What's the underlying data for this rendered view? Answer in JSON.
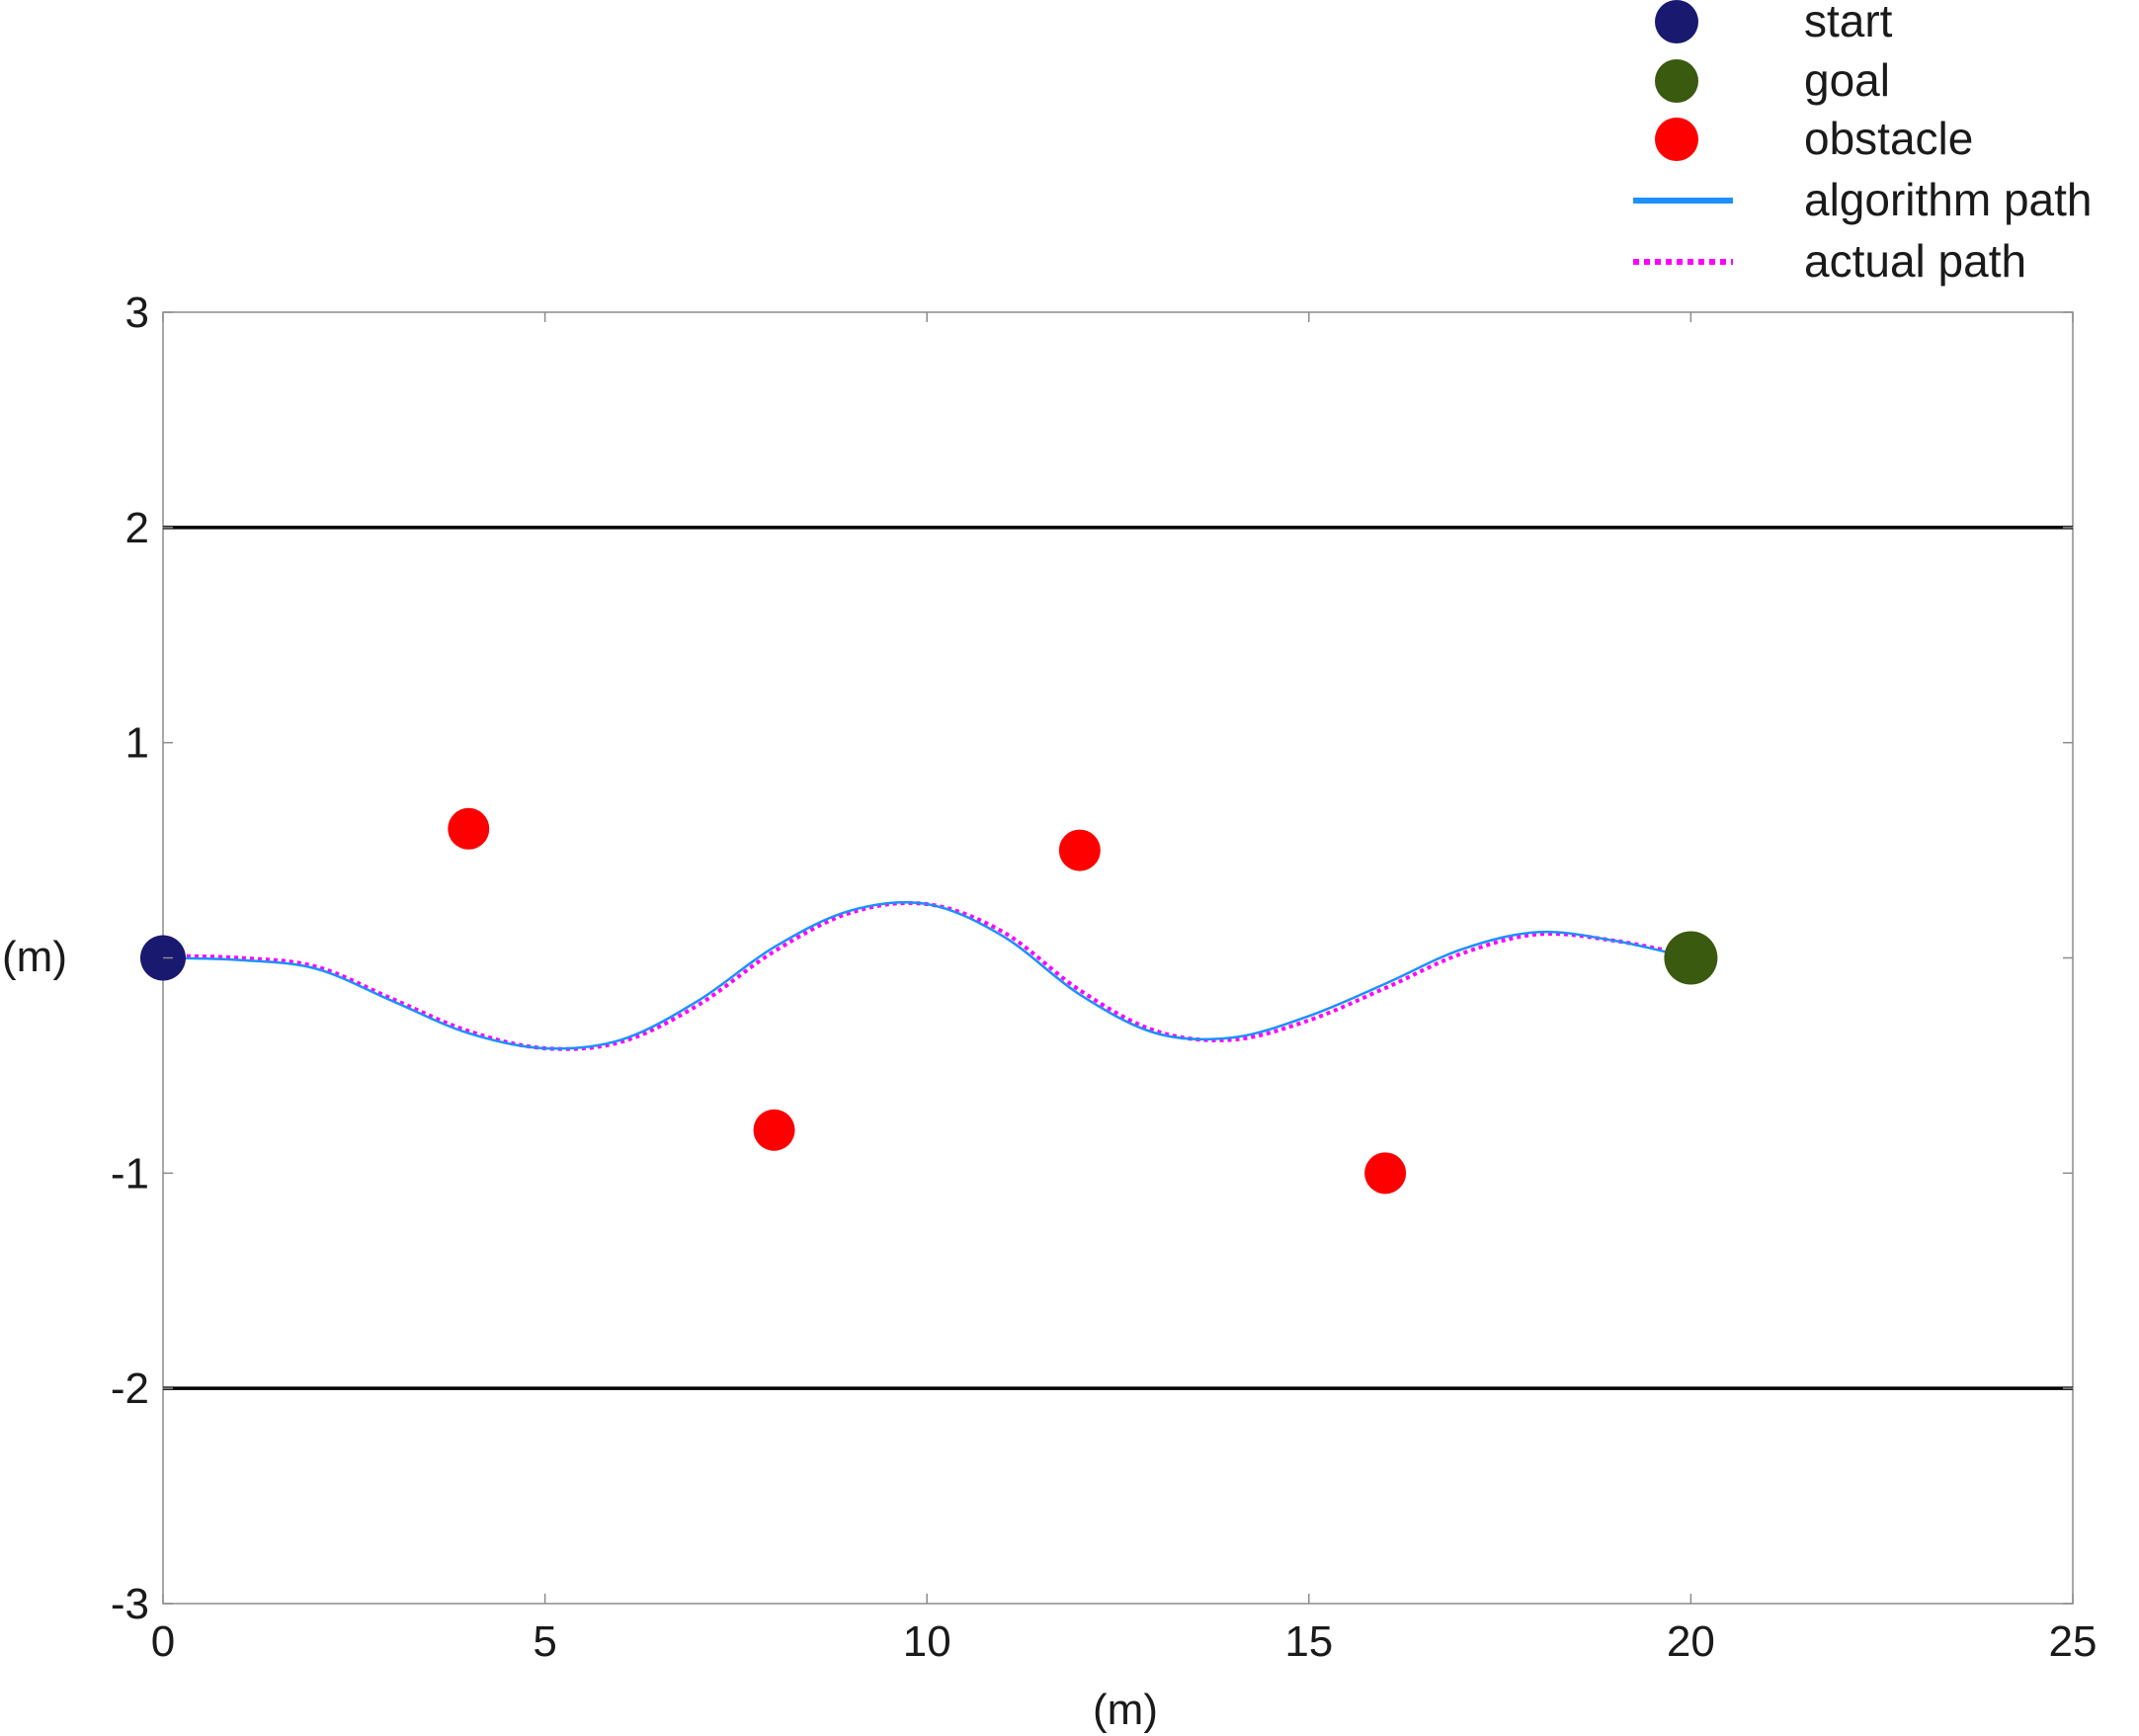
{
  "chart_data": {
    "type": "scatter",
    "title": "",
    "xlabel": "(m)",
    "ylabel": "(m)",
    "xlim": [
      0,
      25
    ],
    "ylim": [
      -3,
      3
    ],
    "x_ticks": [
      "0",
      "5",
      "10",
      "15",
      "20",
      "25"
    ],
    "y_ticks": [
      "3",
      "2",
      "1",
      "-1",
      "-2",
      "-3"
    ],
    "grid": false,
    "legend_position": "top-right, outside plot",
    "boundaries": [
      {
        "y": 2,
        "color": "#000000"
      },
      {
        "y": -2,
        "color": "#000000"
      }
    ],
    "series": [
      {
        "name": "start",
        "marker": "circle",
        "color": "#191970",
        "points": [
          [
            0,
            0
          ]
        ]
      },
      {
        "name": "goal",
        "marker": "circle",
        "color": "#3a5a10",
        "points": [
          [
            20,
            0
          ]
        ]
      },
      {
        "name": "obstacle",
        "marker": "circle",
        "color": "#ff0000",
        "points": [
          [
            4,
            0.6
          ],
          [
            8,
            -0.8
          ],
          [
            12,
            0.5
          ],
          [
            16,
            -1.0
          ]
        ]
      },
      {
        "name": "algorithm path",
        "line": "solid",
        "color": "#1e90ff",
        "x": [
          0,
          1,
          2,
          3,
          4,
          5,
          6,
          7,
          8,
          9,
          10,
          11,
          12,
          13,
          14,
          15,
          16,
          17,
          18,
          19,
          20
        ],
        "y": [
          0,
          -0.01,
          -0.05,
          -0.2,
          -0.35,
          -0.42,
          -0.38,
          -0.2,
          0.05,
          0.22,
          0.25,
          0.1,
          -0.17,
          -0.35,
          -0.37,
          -0.27,
          -0.12,
          0.04,
          0.12,
          0.08,
          0.0
        ]
      },
      {
        "name": "actual path",
        "line": "dotted",
        "color": "#ff00ff",
        "x": [
          0,
          1,
          2,
          3,
          4,
          5,
          6,
          7,
          8,
          9,
          10,
          11,
          12,
          13,
          14,
          15,
          16,
          17,
          18,
          19,
          20
        ],
        "y": [
          0.01,
          0.0,
          -0.04,
          -0.19,
          -0.34,
          -0.42,
          -0.39,
          -0.22,
          0.03,
          0.21,
          0.25,
          0.12,
          -0.15,
          -0.34,
          -0.38,
          -0.29,
          -0.14,
          0.02,
          0.11,
          0.08,
          0.01
        ]
      }
    ]
  }
}
